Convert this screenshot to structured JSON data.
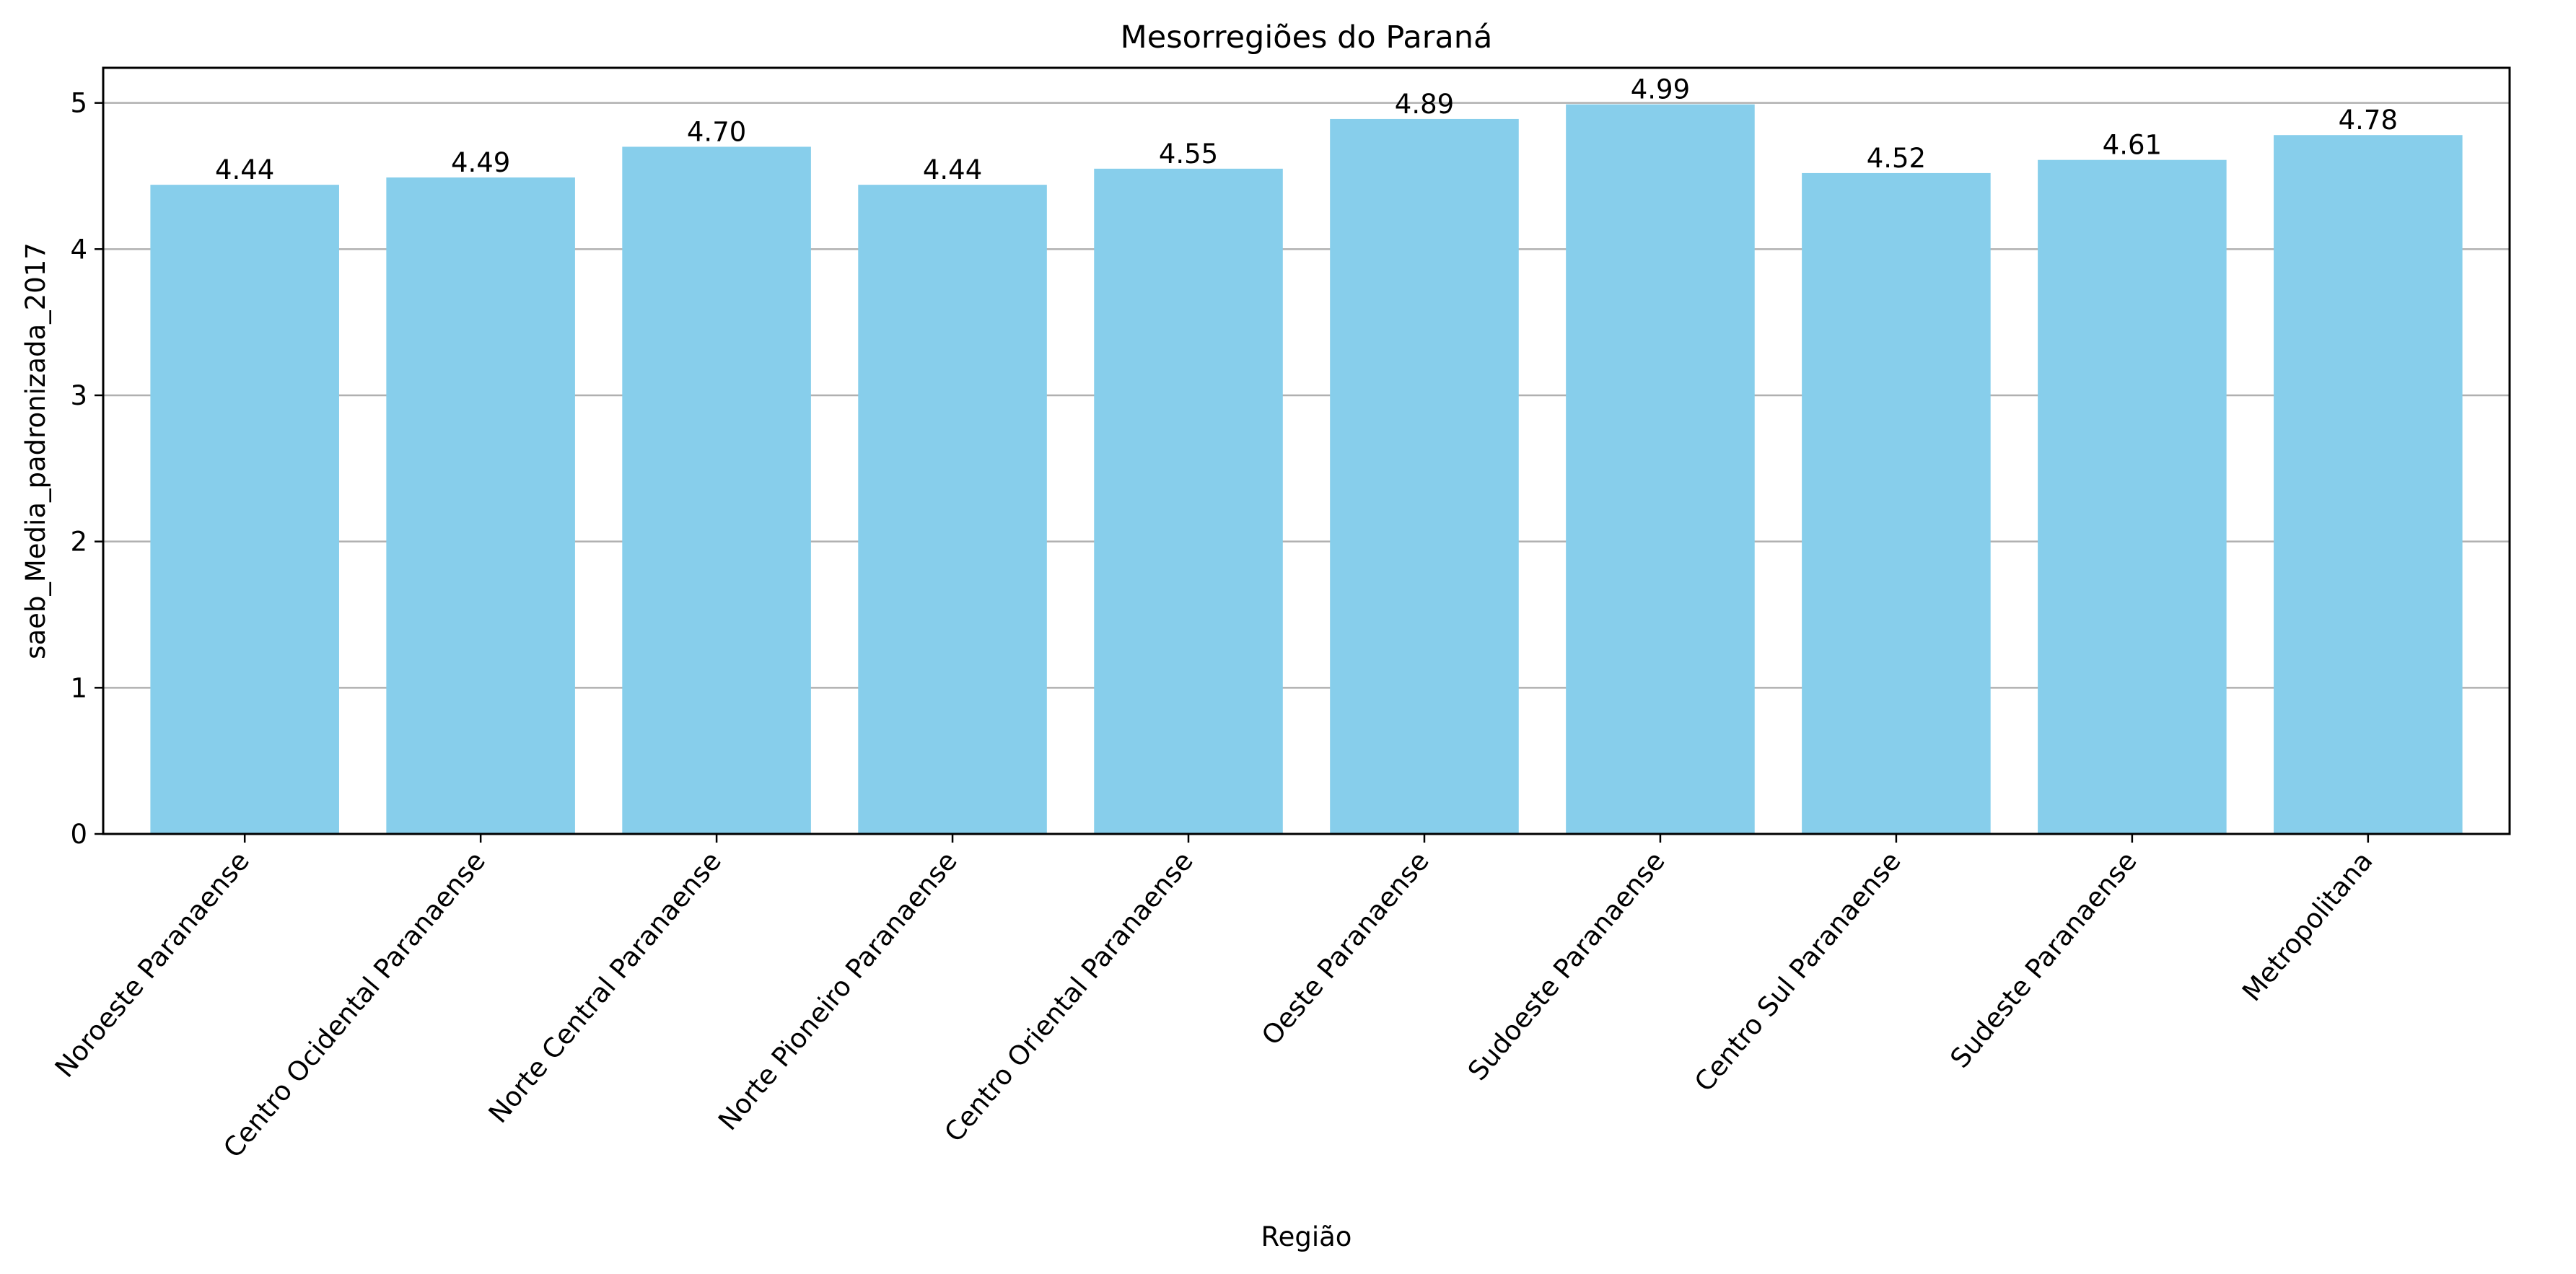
{
  "chart_data": {
    "type": "bar",
    "title": "Mesorregiões do Paraná",
    "xlabel": "Região",
    "ylabel": "saeb_Media_padronizada_2017",
    "categories": [
      "Noroeste Paranaense",
      "Centro Ocidental Paranaense",
      "Norte Central Paranaense",
      "Norte Pioneiro Paranaense",
      "Centro Oriental Paranaense",
      "Oeste Paranaense",
      "Sudoeste Paranaense",
      "Centro Sul Paranaense",
      "Sudeste Paranaense",
      "Metropolitana"
    ],
    "values": [
      4.44,
      4.49,
      4.7,
      4.44,
      4.55,
      4.89,
      4.99,
      4.52,
      4.61,
      4.78
    ],
    "data_labels": [
      "4.44",
      "4.49",
      "4.70",
      "4.44",
      "4.55",
      "4.89",
      "4.99",
      "4.52",
      "4.61",
      "4.78"
    ],
    "ylim": [
      0,
      5.24
    ],
    "yticks": [
      0,
      1,
      2,
      3,
      4,
      5
    ],
    "grid": "y-major",
    "bar_color": "#87CEEB",
    "grid_color": "#b0b0b0"
  }
}
